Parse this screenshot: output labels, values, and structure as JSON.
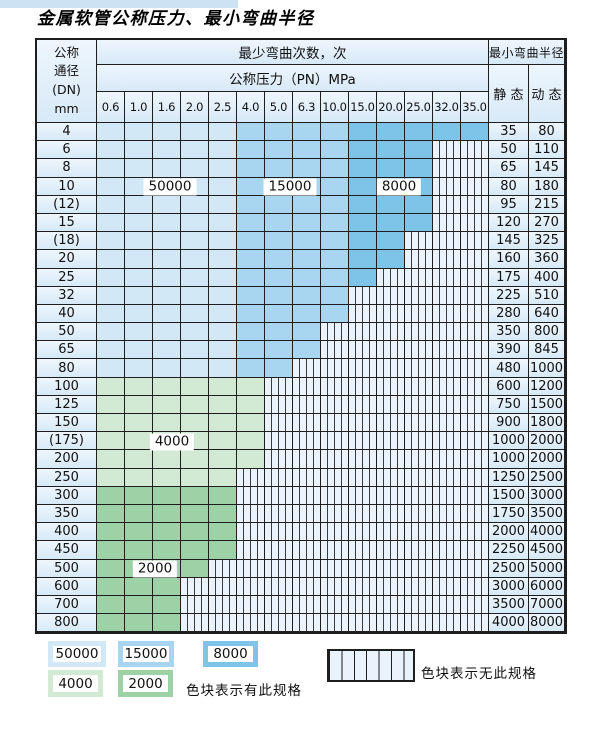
{
  "title": "金属软管公称压力、最小弯曲半径",
  "colors": {
    "c50000": "#d2e8f7",
    "c15000": "#a8d5ef",
    "c8000": "#7ec3e8",
    "c4000": "#d2e9d4",
    "c2000": "#9cd2a5",
    "hatch_bg": "#eaf2fb",
    "grid_line": "#1e1e1e",
    "top_strip": "#cde3f3"
  },
  "table": {
    "header": {
      "dn_label_lines": [
        "公称",
        "通径",
        "(DN)",
        "mm"
      ],
      "bend_cycles_label": "最少弯曲次数，次",
      "pressure_label": "公称压力（PN）MPa",
      "radius_label": "最小弯曲半径",
      "static_label": "静 态",
      "dynamic_label": "动 态",
      "pressures": [
        "0.6",
        "1.0",
        "1.6",
        "2.0",
        "2.5",
        "4.0",
        "5.0",
        "6.3",
        "10.0",
        "15.0",
        "20.0",
        "25.0",
        "32.0",
        "35.0"
      ]
    },
    "cycle_bands_by_pressure": {
      "blue_rows": {
        "50000": [
          "0.6",
          "1.0",
          "1.6",
          "2.0",
          "2.5"
        ],
        "15000": [
          "4.0",
          "5.0",
          "6.3",
          "10.0"
        ],
        "8000": [
          "15.0",
          "20.0",
          "25.0",
          "32.0",
          "35.0"
        ]
      }
    },
    "rows": [
      {
        "dn": "4",
        "scheme": "blue",
        "colored_through_col": 13,
        "static": "35",
        "dynamic": "80"
      },
      {
        "dn": "6",
        "scheme": "blue",
        "colored_through_col": 11,
        "static": "50",
        "dynamic": "110"
      },
      {
        "dn": "8",
        "scheme": "blue",
        "colored_through_col": 11,
        "static": "65",
        "dynamic": "145"
      },
      {
        "dn": "10",
        "scheme": "blue",
        "colored_through_col": 11,
        "static": "80",
        "dynamic": "180"
      },
      {
        "dn": "(12)",
        "scheme": "blue",
        "colored_through_col": 11,
        "static": "95",
        "dynamic": "215"
      },
      {
        "dn": "15",
        "scheme": "blue",
        "colored_through_col": 11,
        "static": "120",
        "dynamic": "270"
      },
      {
        "dn": "(18)",
        "scheme": "blue",
        "colored_through_col": 10,
        "static": "145",
        "dynamic": "325"
      },
      {
        "dn": "20",
        "scheme": "blue",
        "colored_through_col": 10,
        "static": "160",
        "dynamic": "360"
      },
      {
        "dn": "25",
        "scheme": "blue",
        "colored_through_col": 9,
        "static": "175",
        "dynamic": "400"
      },
      {
        "dn": "32",
        "scheme": "blue",
        "colored_through_col": 8,
        "static": "225",
        "dynamic": "510"
      },
      {
        "dn": "40",
        "scheme": "blue",
        "colored_through_col": 8,
        "static": "280",
        "dynamic": "640"
      },
      {
        "dn": "50",
        "scheme": "blue",
        "colored_through_col": 7,
        "static": "350",
        "dynamic": "800"
      },
      {
        "dn": "65",
        "scheme": "blue",
        "colored_through_col": 7,
        "static": "390",
        "dynamic": "845"
      },
      {
        "dn": "80",
        "scheme": "blue",
        "colored_through_col": 6,
        "static": "480",
        "dynamic": "1000"
      },
      {
        "dn": "100",
        "scheme": "green-4000",
        "colored_through_col": 5,
        "static": "600",
        "dynamic": "1200"
      },
      {
        "dn": "125",
        "scheme": "green-4000",
        "colored_through_col": 5,
        "static": "750",
        "dynamic": "1500"
      },
      {
        "dn": "150",
        "scheme": "green-4000",
        "colored_through_col": 5,
        "static": "900",
        "dynamic": "1800"
      },
      {
        "dn": "(175)",
        "scheme": "green-4000",
        "colored_through_col": 5,
        "static": "1000",
        "dynamic": "2000"
      },
      {
        "dn": "200",
        "scheme": "green-4000",
        "colored_through_col": 5,
        "static": "1000",
        "dynamic": "2000"
      },
      {
        "dn": "250",
        "scheme": "green-4000",
        "colored_through_col": 4,
        "static": "1250",
        "dynamic": "2500"
      },
      {
        "dn": "300",
        "scheme": "green-2000",
        "colored_through_col": 4,
        "static": "1500",
        "dynamic": "3000"
      },
      {
        "dn": "350",
        "scheme": "green-2000",
        "colored_through_col": 4,
        "static": "1750",
        "dynamic": "3500"
      },
      {
        "dn": "400",
        "scheme": "green-2000",
        "colored_through_col": 4,
        "static": "2000",
        "dynamic": "4000"
      },
      {
        "dn": "450",
        "scheme": "green-2000",
        "colored_through_col": 4,
        "static": "2250",
        "dynamic": "4500"
      },
      {
        "dn": "500",
        "scheme": "green-2000",
        "colored_through_col": 3,
        "static": "2500",
        "dynamic": "5000"
      },
      {
        "dn": "600",
        "scheme": "green-2000",
        "colored_through_col": 2,
        "static": "3000",
        "dynamic": "6000"
      },
      {
        "dn": "700",
        "scheme": "green-2000",
        "colored_through_col": 2,
        "static": "3500",
        "dynamic": "7000"
      },
      {
        "dn": "800",
        "scheme": "green-2000",
        "colored_through_col": 2,
        "static": "4000",
        "dynamic": "8000"
      }
    ]
  },
  "overlays": [
    {
      "text": "50000"
    },
    {
      "text": "15000"
    },
    {
      "text": "8000"
    },
    {
      "text": "4000"
    },
    {
      "text": "2000"
    }
  ],
  "legend": {
    "items": [
      {
        "label": "50000",
        "color_key": "c50000"
      },
      {
        "label": "15000",
        "color_key": "c15000"
      },
      {
        "label": "8000",
        "color_key": "c8000"
      },
      {
        "label": "4000",
        "color_key": "c4000"
      },
      {
        "label": "2000",
        "color_key": "c2000"
      }
    ],
    "has_spec_note": "色块表示有此规格",
    "no_spec_note": "色块表示无此规格"
  }
}
